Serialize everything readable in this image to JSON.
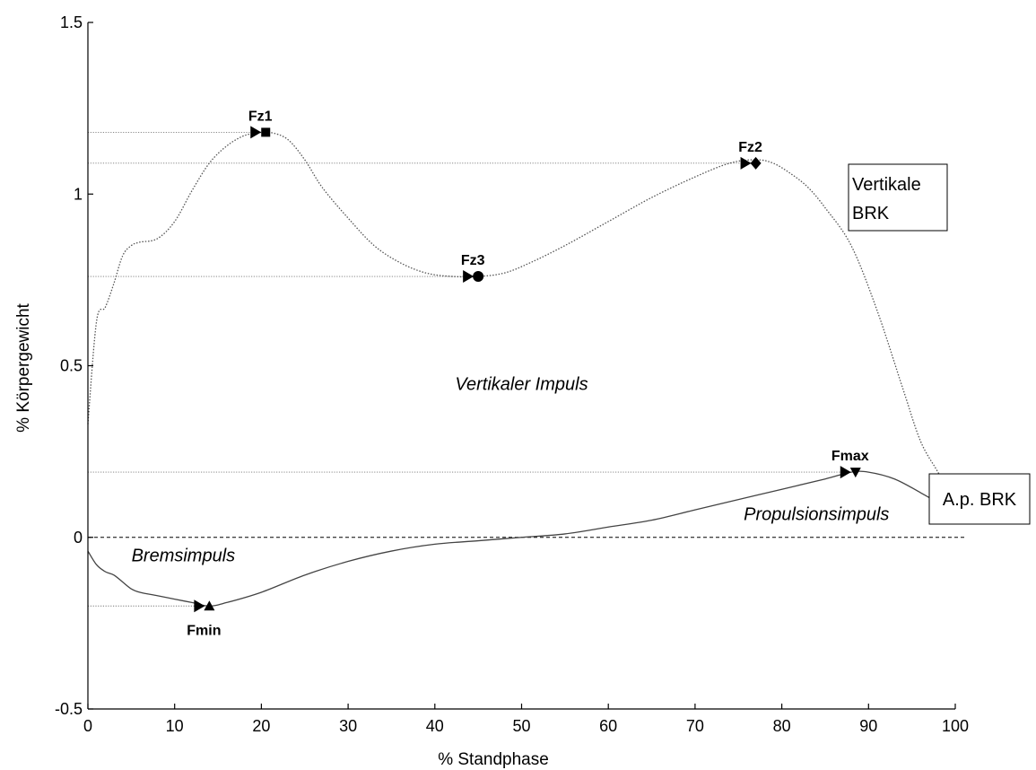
{
  "chart_data": {
    "type": "line",
    "xlabel": "% Standphase",
    "ylabel": "% Körpergewicht",
    "xlim": [
      0,
      100
    ],
    "ylim": [
      -0.5,
      1.5
    ],
    "xticks": [
      0,
      10,
      20,
      30,
      40,
      50,
      60,
      70,
      80,
      90,
      100
    ],
    "yticks": [
      -0.5,
      0,
      0.5,
      1,
      1.5
    ],
    "series": [
      {
        "name": "Vertikale BRK",
        "style": "dotted",
        "x": [
          0,
          1,
          2,
          3,
          4,
          5,
          6,
          8,
          10,
          12,
          14,
          16,
          18,
          20,
          21,
          23,
          25,
          27,
          30,
          33,
          36,
          39,
          42,
          45,
          48,
          51,
          55,
          60,
          65,
          70,
          74,
          77,
          79,
          81,
          83,
          85,
          88,
          91,
          94,
          96,
          98,
          100
        ],
        "y": [
          0.33,
          0.63,
          0.67,
          0.74,
          0.82,
          0.85,
          0.86,
          0.87,
          0.92,
          1.01,
          1.09,
          1.14,
          1.17,
          1.18,
          1.18,
          1.16,
          1.1,
          1.02,
          0.93,
          0.85,
          0.8,
          0.77,
          0.76,
          0.76,
          0.77,
          0.8,
          0.85,
          0.92,
          0.99,
          1.05,
          1.09,
          1.1,
          1.09,
          1.06,
          1.02,
          0.96,
          0.85,
          0.66,
          0.43,
          0.28,
          0.19,
          0.1
        ]
      },
      {
        "name": "A.p. BRK",
        "style": "solid",
        "x": [
          0,
          1,
          2,
          3,
          4,
          5,
          6,
          8,
          10,
          12,
          14,
          16,
          20,
          25,
          30,
          35,
          40,
          45,
          50,
          55,
          60,
          65,
          70,
          75,
          80,
          85,
          88,
          90,
          93,
          96,
          98,
          100
        ],
        "y": [
          -0.04,
          -0.08,
          -0.1,
          -0.11,
          -0.13,
          -0.15,
          -0.16,
          -0.17,
          -0.18,
          -0.19,
          -0.2,
          -0.19,
          -0.16,
          -0.11,
          -0.07,
          -0.04,
          -0.02,
          -0.01,
          0.0,
          0.01,
          0.03,
          0.05,
          0.08,
          0.11,
          0.14,
          0.17,
          0.19,
          0.19,
          0.17,
          0.13,
          0.1,
          0.06
        ]
      }
    ],
    "zero_line": {
      "y": 0,
      "style": "dashed"
    },
    "markers": [
      {
        "label": "Fz1",
        "shape": "square",
        "x": 20.5,
        "y": 1.18,
        "label_pos": "above"
      },
      {
        "label": "Fz3",
        "shape": "circle",
        "x": 45,
        "y": 0.76,
        "label_pos": "above"
      },
      {
        "label": "Fz2",
        "shape": "diamond",
        "x": 77,
        "y": 1.09,
        "label_pos": "above"
      },
      {
        "label": "Fmin",
        "shape": "triangle-up",
        "x": 14,
        "y": -0.2,
        "label_pos": "below"
      },
      {
        "label": "Fmax",
        "shape": "triangle-down",
        "x": 88.5,
        "y": 0.19,
        "label_pos": "above"
      }
    ],
    "annotations": [
      {
        "text": "Vertikaler Impuls",
        "x": 50,
        "y": 0.43
      },
      {
        "text": "Propulsionsimpuls",
        "x": 84,
        "y": 0.05
      },
      {
        "text": "Bremsimpuls",
        "x": 11,
        "y": -0.07
      }
    ],
    "boxed_labels": [
      {
        "lines": [
          "Vertikale",
          "BRK"
        ]
      },
      {
        "lines": [
          "A.p. BRK"
        ]
      }
    ]
  }
}
